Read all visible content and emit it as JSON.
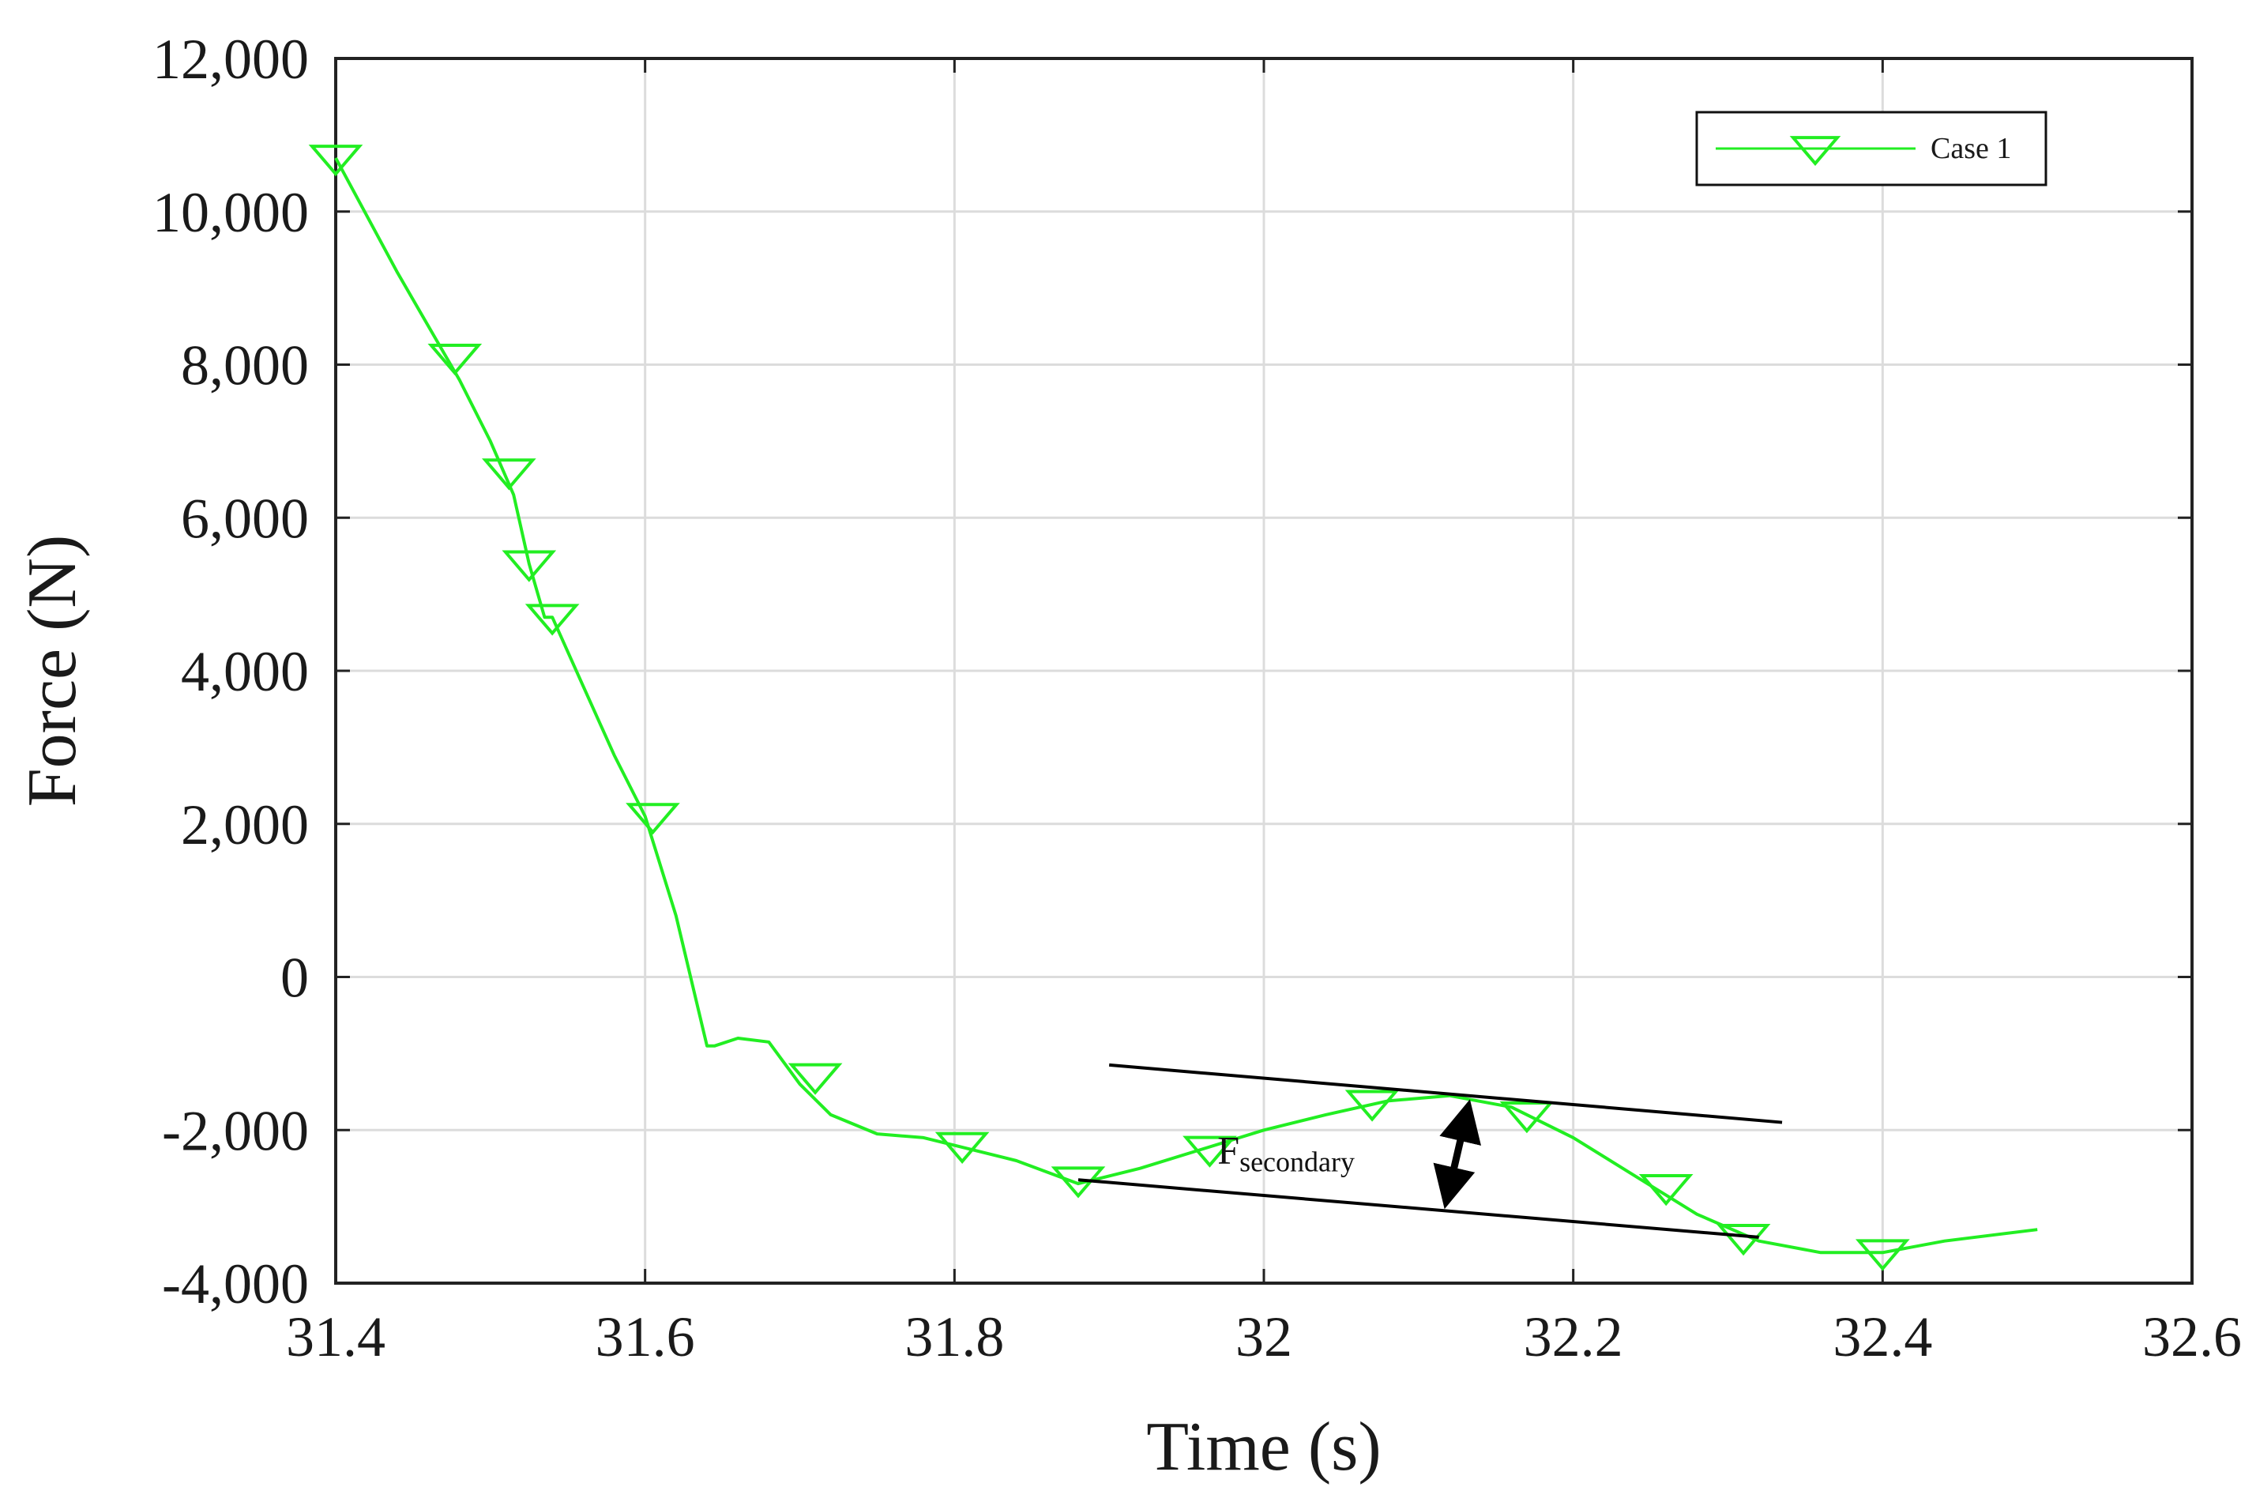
{
  "chart_data": {
    "type": "line",
    "xlabel": "Time (s)",
    "ylabel": "Force (N)",
    "xlim": [
      31.4,
      32.6
    ],
    "ylim": [
      -4000,
      12000
    ],
    "x_ticks": [
      31.4,
      31.6,
      31.8,
      32.0,
      32.2,
      32.4,
      32.6
    ],
    "x_tick_labels": [
      "31.4",
      "31.6",
      "31.8",
      "32",
      "32.2",
      "32.4",
      "32.6"
    ],
    "y_ticks": [
      -4000,
      -2000,
      0,
      2000,
      4000,
      6000,
      8000,
      10000,
      12000
    ],
    "y_tick_labels": [
      "-4,000",
      "-2,000",
      "0",
      "2,000",
      "4,000",
      "6,000",
      "8,000",
      "10,000",
      "12,000"
    ],
    "grid": true,
    "legend_position": "top-right",
    "series": [
      {
        "name": "Case 1",
        "color": "#22ee22",
        "marker": "triangle-down",
        "x": [
          31.4,
          31.44,
          31.46,
          31.48,
          31.5,
          31.515,
          31.525,
          31.535,
          31.54,
          31.56,
          31.58,
          31.6,
          31.62,
          31.64,
          31.645,
          31.66,
          31.68,
          31.7,
          31.72,
          31.75,
          31.78,
          31.8,
          31.84,
          31.88,
          31.92,
          31.96,
          32.0,
          32.04,
          32.08,
          32.12,
          32.16,
          32.2,
          32.24,
          32.28,
          32.32,
          32.36,
          32.38,
          32.4,
          32.44,
          32.5
        ],
        "y": [
          10700,
          9200,
          8500,
          7800,
          7000,
          6300,
          5400,
          4700,
          4700,
          3800,
          2900,
          2100,
          800,
          -900,
          -900,
          -800,
          -850,
          -1400,
          -1800,
          -2050,
          -2100,
          -2200,
          -2400,
          -2700,
          -2500,
          -2250,
          -2000,
          -1800,
          -1620,
          -1550,
          -1700,
          -2100,
          -2600,
          -3100,
          -3450,
          -3600,
          -3600,
          -3600,
          -3450,
          -3300
        ],
        "marker_x": [
          31.4,
          31.477,
          31.512,
          31.525,
          31.54,
          31.605,
          31.71,
          31.805,
          31.88,
          31.965,
          32.07,
          32.17,
          32.26,
          32.31,
          32.4
        ],
        "marker_y": [
          10700,
          8100,
          6600,
          5400,
          4700,
          2100,
          -1300,
          -2200,
          -2650,
          -2250,
          -1650,
          -1800,
          -2750,
          -3400,
          -3600
        ]
      }
    ],
    "annotations": [
      {
        "label": "F",
        "subscript": "secondary",
        "upper_line": [
          [
            31.9,
            -1150
          ],
          [
            32.335,
            -1900
          ]
        ],
        "lower_line": [
          [
            31.88,
            -2650
          ],
          [
            32.32,
            -3400
          ]
        ],
        "arrow_x": 32.125,
        "arrow_y": [
          -1580,
          -3050
        ],
        "label_at": [
          31.97,
          -2250
        ]
      }
    ]
  }
}
